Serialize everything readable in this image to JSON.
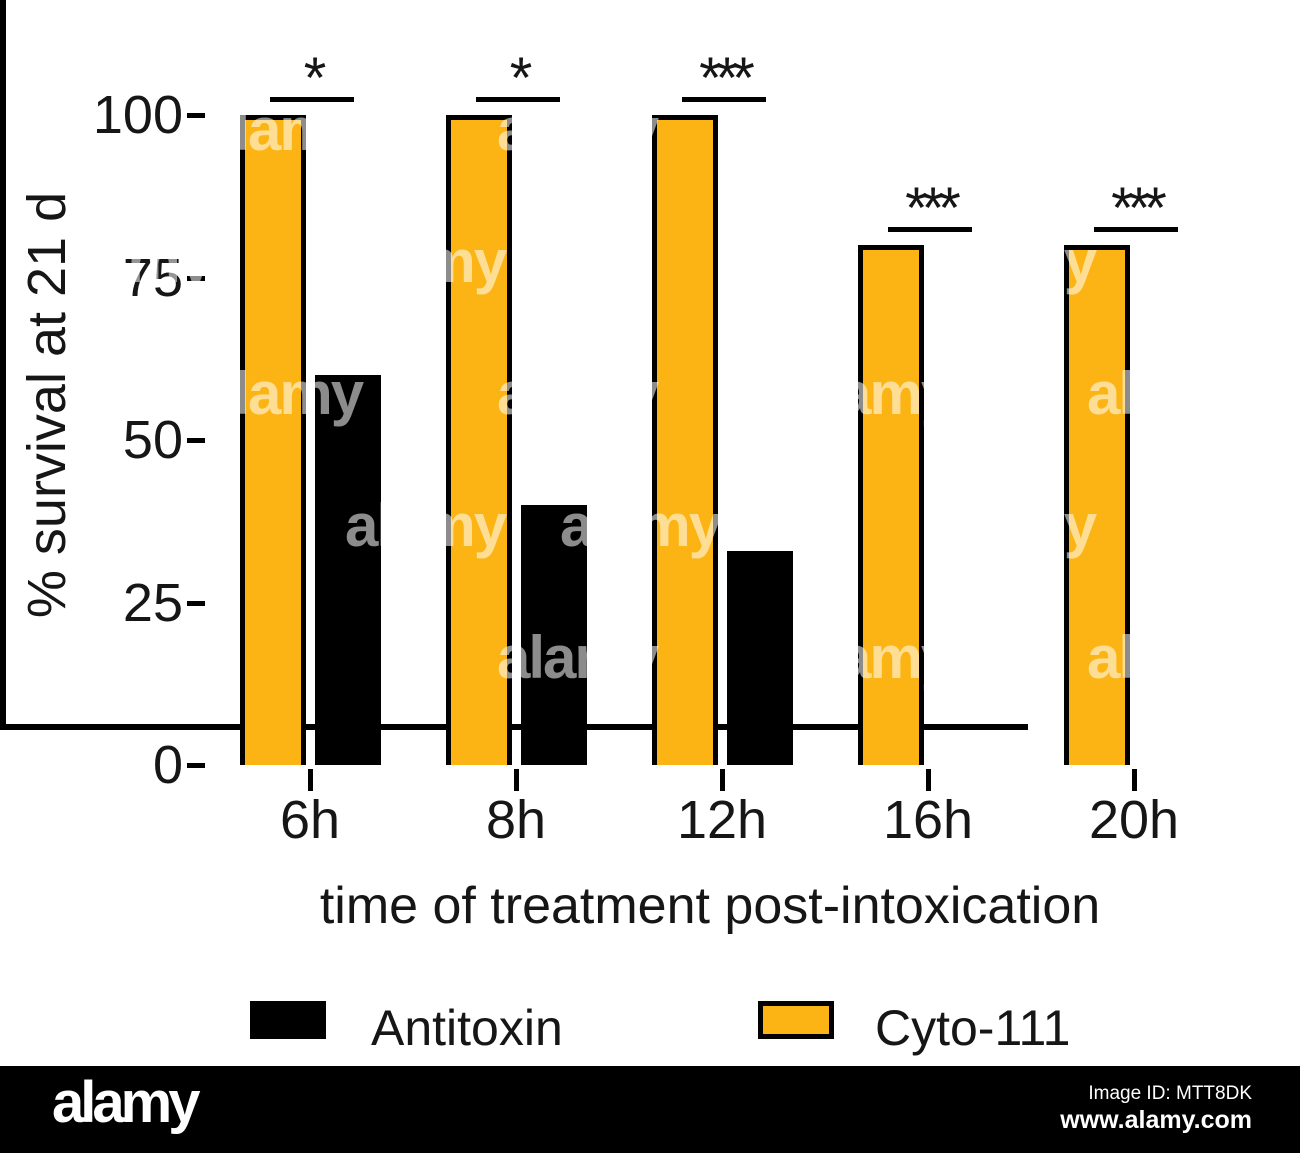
{
  "chart_data": {
    "type": "bar",
    "xlabel": "time of treatment post-intoxication",
    "ylabel": "% survival at 21 d",
    "categories": [
      "6h",
      "8h",
      "12h",
      "16h",
      "20h"
    ],
    "series": [
      {
        "name": "Antitoxin",
        "color": "#000000",
        "values": [
          60,
          40,
          33,
          0,
          0
        ]
      },
      {
        "name": "Cyto-111",
        "color": "#FCB414",
        "values": [
          100,
          100,
          100,
          80,
          80
        ]
      }
    ],
    "significance": [
      "*",
      "*",
      "***",
      "***",
      "***"
    ],
    "yticks": [
      0,
      25,
      50,
      75,
      100
    ],
    "ylim": [
      0,
      110
    ],
    "grid": false,
    "legend_position": "bottom"
  },
  "colors": {
    "bar_orange": "#FCB414",
    "outline": "#000000",
    "axis": "#000000",
    "text": "#161616",
    "footer_bg": "#000000",
    "footer_text": "#FFFFFF"
  },
  "watermark": {
    "brand": "alamy",
    "tile_word": "alamy",
    "image_id_label": "Image ID: MTT8DK",
    "site": "www.alamy.com"
  }
}
